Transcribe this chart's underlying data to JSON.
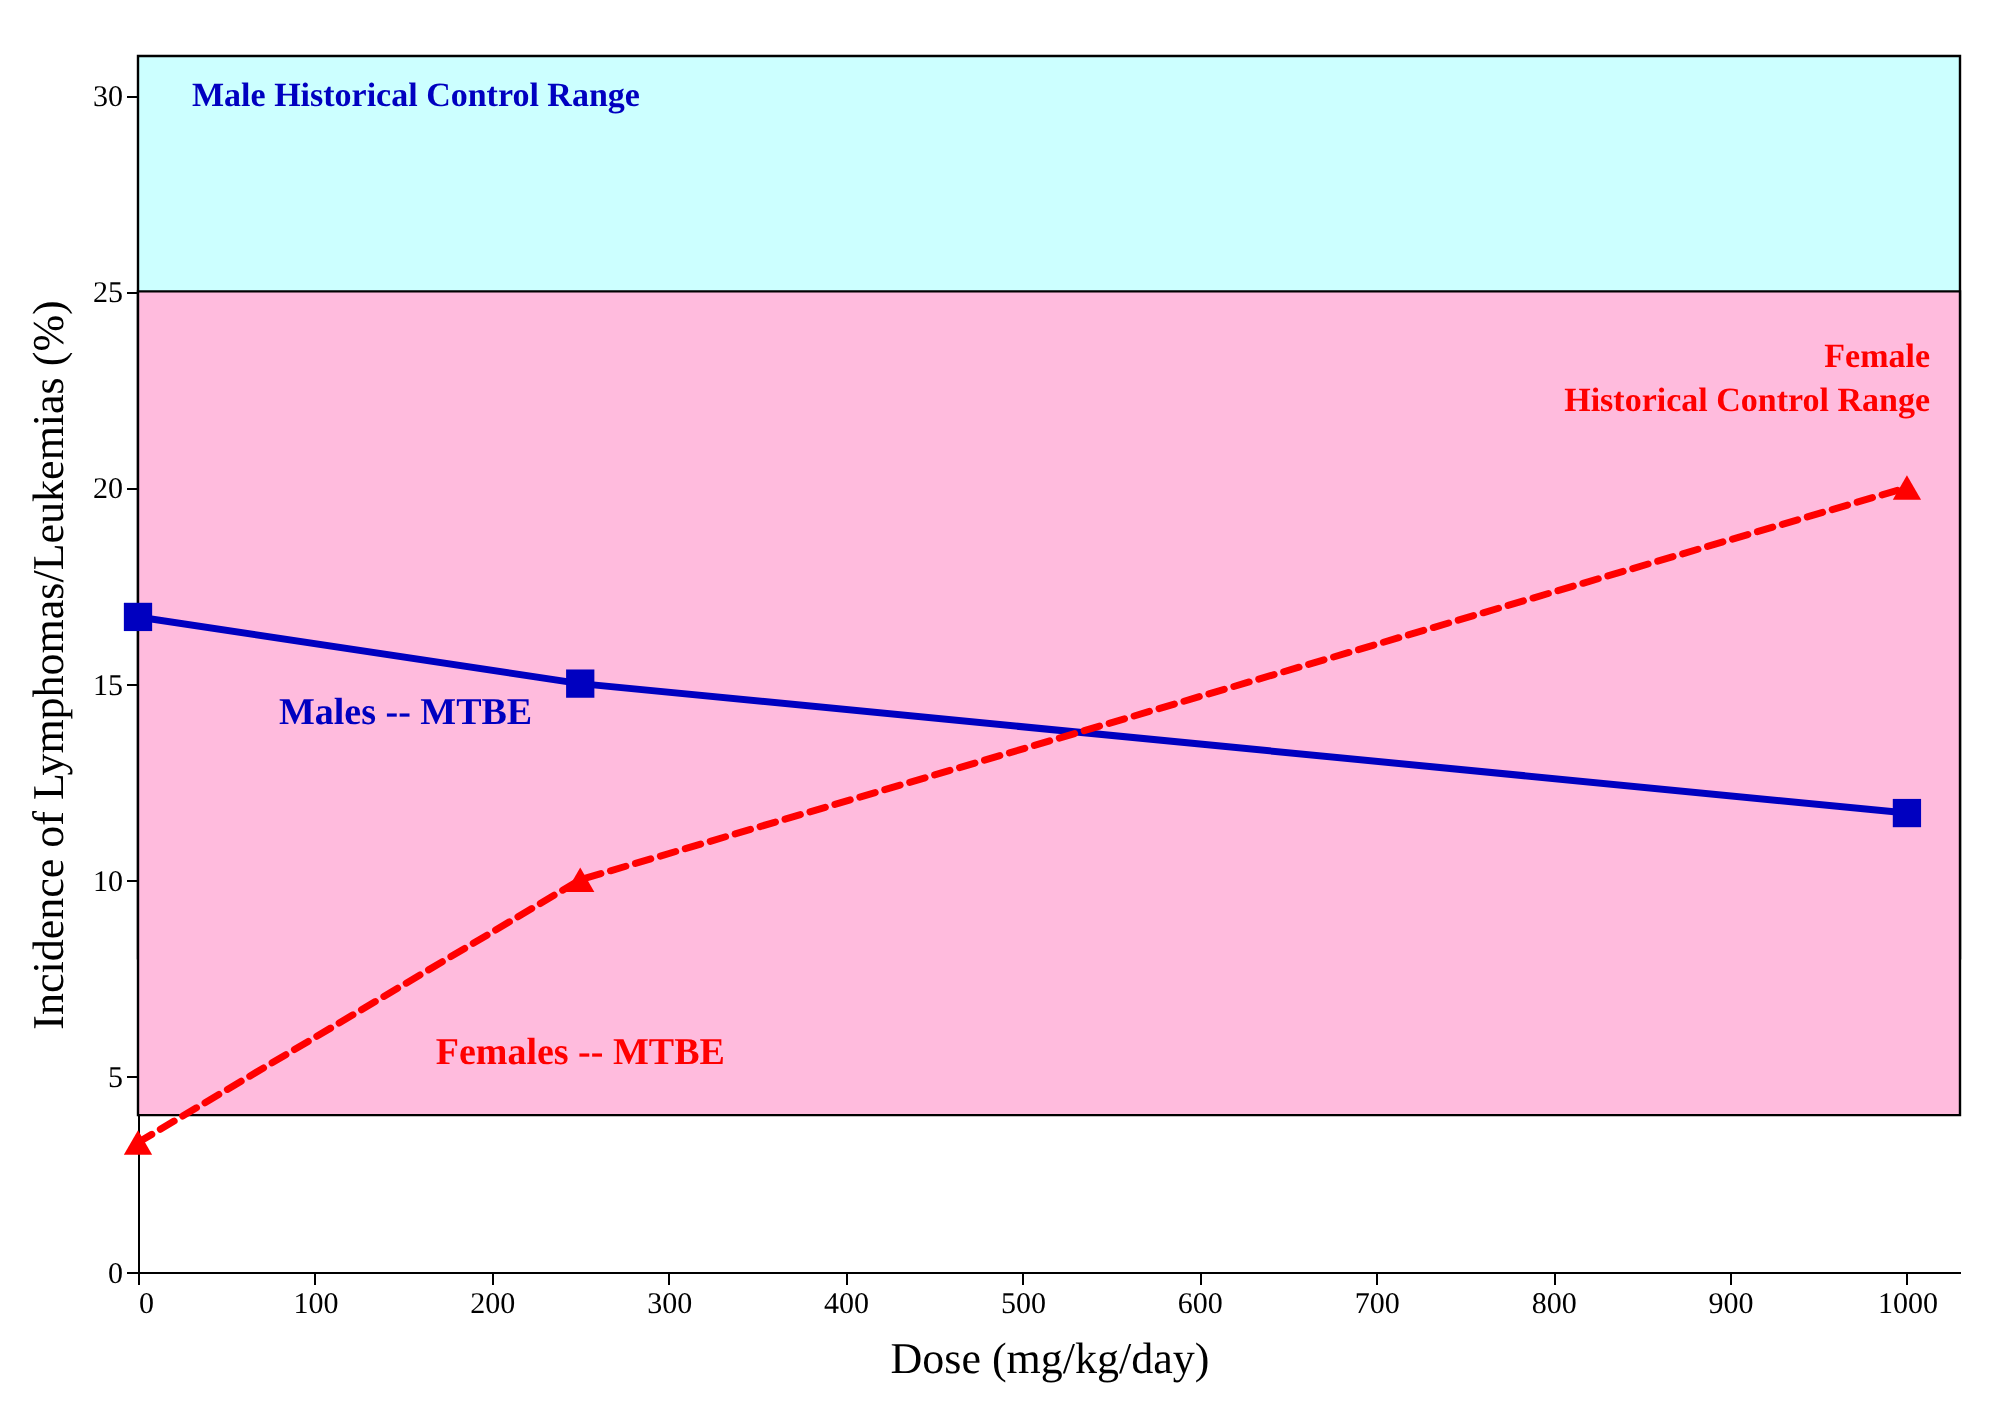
{
  "chart_data": {
    "type": "line",
    "xlabel": "Dose (mg/kg/day)",
    "ylabel": "Incidence of Lymphomas/Leukemias (%)",
    "x": [
      0,
      250,
      1000
    ],
    "series": [
      {
        "name": "Males -- MTBE",
        "color": "#0000c0",
        "values": [
          16.7,
          15,
          11.7
        ],
        "marker": "square",
        "line_style": "solid"
      },
      {
        "name": "Females -- MTBE",
        "color": "#ff0000",
        "values": [
          3.3,
          10,
          20
        ],
        "marker": "triangle",
        "line_style": "dashed"
      }
    ],
    "xlim": [
      0,
      1030
    ],
    "xticks": [
      0,
      100,
      200,
      300,
      400,
      500,
      600,
      700,
      800,
      900,
      1000
    ],
    "ylim": [
      0,
      31
    ],
    "yticks": [
      0,
      5,
      10,
      15,
      20,
      25,
      30
    ],
    "bands": [
      {
        "axis": "y",
        "from": 8,
        "to": 31,
        "label": "Male Historical Control Range",
        "color": "#ccffff"
      },
      {
        "axis": "y",
        "from": 4,
        "to": 25,
        "label": "Female\nHistorical Control Range",
        "color": "#ffbbdd"
      }
    ],
    "grid": false
  }
}
